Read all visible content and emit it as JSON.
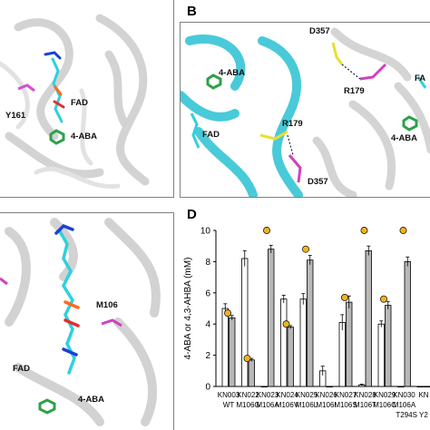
{
  "panels": {
    "a": {
      "labels": {
        "fad": "FAD",
        "y161": "Y161",
        "aba": "4-ABA"
      }
    },
    "b": {
      "letter": "B",
      "labels": {
        "d357_top": "D357",
        "r179_top": "R179",
        "aba_left": "4-ABA",
        "fad_left": "FAD",
        "r179_mid": "R179",
        "d357_bot": "D357",
        "aba_right": "4-ABA",
        "fad_right": "FA"
      }
    },
    "c": {
      "labels": {
        "m106": "M106",
        "fad": "FAD",
        "aba": "4-ABA"
      }
    },
    "d": {
      "letter": "D"
    }
  },
  "chart_data": {
    "type": "bar",
    "ylabel": "4-ABA or 4,3-AHBA (mM)",
    "ylim": [
      0,
      10
    ],
    "yticks": [
      "0",
      "2",
      "4",
      "6",
      "8",
      "10"
    ],
    "categories": [
      {
        "name": "KN003",
        "mut": "WT"
      },
      {
        "name": "KN022",
        "mut": "M106G"
      },
      {
        "name": "KN023",
        "mut": "M106A"
      },
      {
        "name": "KN024",
        "mut": "M106V"
      },
      {
        "name": "KN025",
        "mut": "M106L"
      },
      {
        "name": "KN026",
        "mut": "M106I"
      },
      {
        "name": "KN027",
        "mut": "M106S"
      },
      {
        "name": "KN028",
        "mut": "M106T"
      },
      {
        "name": "KN029",
        "mut": "M106C"
      },
      {
        "name": "KN030",
        "mut": "M106A"
      },
      {
        "name": "KN",
        "mut": ""
      }
    ],
    "extra_mutation_label": "T294S Y2",
    "series": [
      {
        "values": [
          5.0,
          8.2,
          0.0,
          5.6,
          5.6,
          1.0,
          4.1,
          0.1,
          4.0,
          0.0,
          0.0
        ],
        "errors": [
          0.3,
          0.5,
          0,
          0.25,
          0.35,
          0.3,
          0.5,
          0.05,
          0.2,
          0,
          0
        ]
      },
      {
        "values": [
          4.4,
          1.7,
          8.8,
          3.8,
          8.1,
          0.0,
          5.4,
          8.7,
          5.2,
          8.0,
          0.0
        ],
        "errors": [
          0.15,
          0.1,
          0.25,
          0.1,
          0.3,
          0,
          0.4,
          0.3,
          0.25,
          0.3,
          0
        ]
      },
      {
        "values": [
          4.7,
          1.8,
          10.0,
          4.0,
          8.8,
          0.0,
          5.7,
          10.0,
          5.6,
          10.0,
          0.0
        ]
      }
    ],
    "colors": {
      "series1": "#ffffff",
      "series2": "#b8b8b8",
      "series3": "#f2b321"
    }
  }
}
